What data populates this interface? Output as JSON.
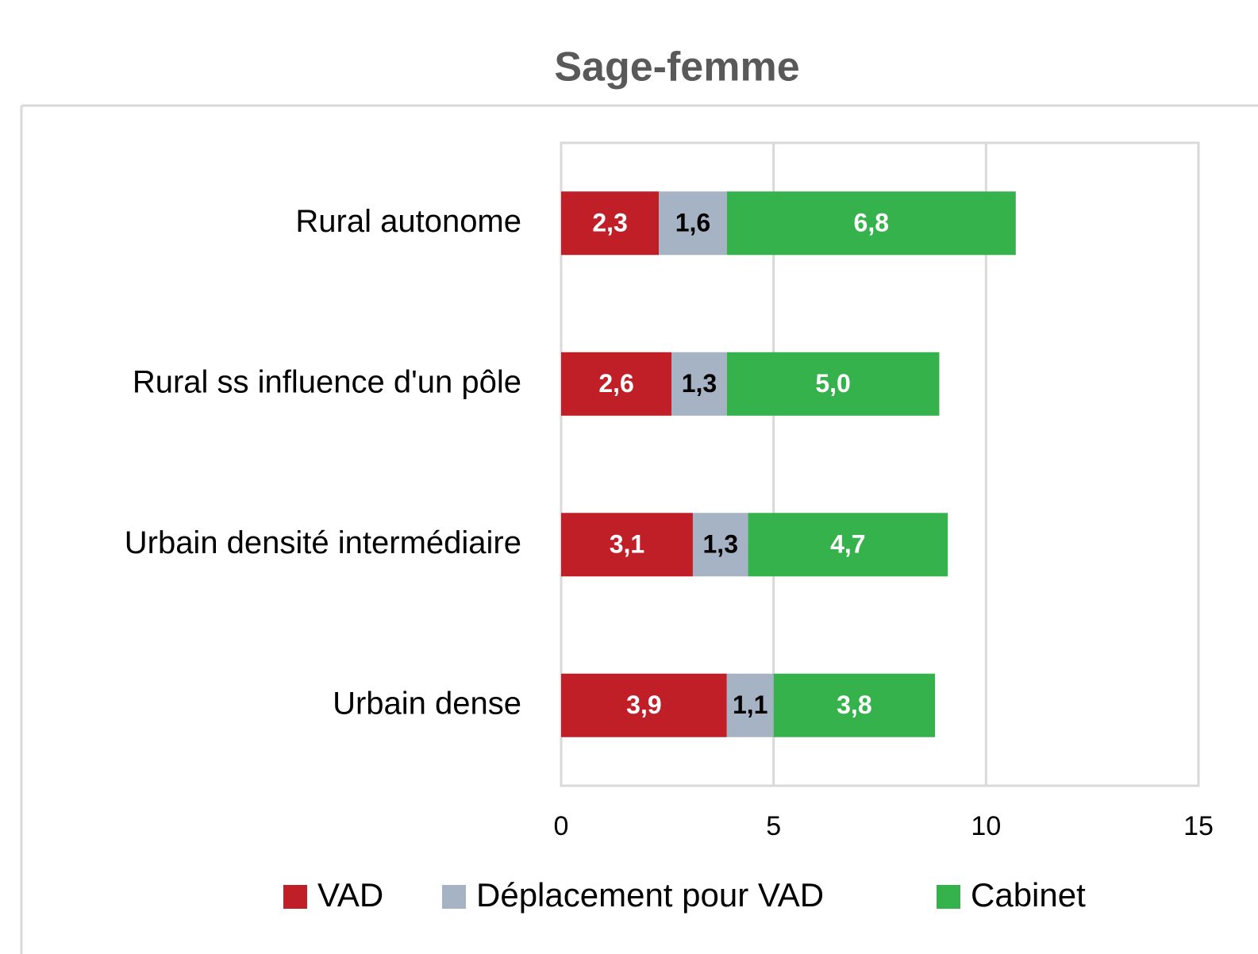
{
  "chart_data": {
    "type": "stacked_barh",
    "title": "Sage-femme",
    "categories": [
      "Rural autonome",
      "Rural ss influence d'un pôle",
      "Urbain densité intermédiaire",
      "Urbain dense"
    ],
    "series": [
      {
        "name": "VAD",
        "color": "#c01f28",
        "values": [
          2.3,
          2.6,
          3.1,
          3.9
        ],
        "value_labels": [
          "2,3",
          "2,6",
          "3,1",
          "3,9"
        ]
      },
      {
        "name": "Déplacement pour VAD",
        "color": "#a6b3c4",
        "values": [
          1.6,
          1.3,
          1.3,
          1.1
        ],
        "value_labels": [
          "1,6",
          "1,3",
          "1,3",
          "1,1"
        ]
      },
      {
        "name": "Cabinet",
        "color": "#36b24c",
        "values": [
          6.8,
          5.0,
          4.7,
          3.8
        ],
        "value_labels": [
          "6,8",
          "5,0",
          "4,7",
          "3,8"
        ]
      }
    ],
    "xlim": [
      0,
      15
    ],
    "xticks": [
      0,
      5,
      10,
      15
    ],
    "grid": true,
    "legend": "bottom"
  }
}
